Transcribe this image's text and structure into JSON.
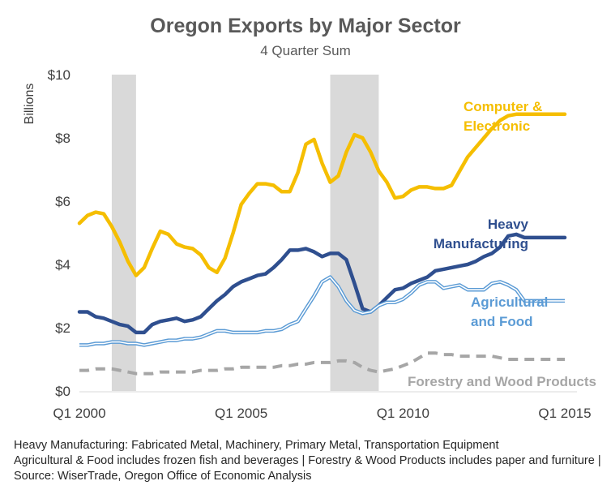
{
  "chart_data": {
    "type": "line",
    "title": "Oregon Exports by Major Sector",
    "subtitle": "4 Quarter Sum",
    "ylabel": "Billions",
    "xlabel": "",
    "ylim": [
      0,
      10
    ],
    "yticks": [
      "$0",
      "$2",
      "$4",
      "$6",
      "$8",
      "$10"
    ],
    "xticks": [
      "Q1 2000",
      "Q1 2005",
      "Q1 2010",
      "Q1 2015"
    ],
    "grid": false,
    "x": [
      2000.0,
      2000.25,
      2000.5,
      2000.75,
      2001.0,
      2001.25,
      2001.5,
      2001.75,
      2002.0,
      2002.25,
      2002.5,
      2002.75,
      2003.0,
      2003.25,
      2003.5,
      2003.75,
      2004.0,
      2004.25,
      2004.5,
      2004.75,
      2005.0,
      2005.25,
      2005.5,
      2005.75,
      2006.0,
      2006.25,
      2006.5,
      2006.75,
      2007.0,
      2007.25,
      2007.5,
      2007.75,
      2008.0,
      2008.25,
      2008.5,
      2008.75,
      2009.0,
      2009.25,
      2009.5,
      2009.75,
      2010.0,
      2010.25,
      2010.5,
      2010.75,
      2011.0,
      2011.25,
      2011.5,
      2011.75,
      2012.0,
      2012.25,
      2012.5,
      2012.75,
      2013.0,
      2013.25,
      2013.5,
      2013.75,
      2014.0,
      2014.25,
      2014.5,
      2014.75,
      2015.0
    ],
    "series": [
      {
        "name": "Computer & Electronic",
        "color": "#f5be00",
        "dash": "solid",
        "values": [
          5.3,
          5.55,
          5.65,
          5.6,
          5.2,
          4.7,
          4.1,
          3.65,
          3.9,
          4.5,
          5.05,
          4.95,
          4.65,
          4.55,
          4.5,
          4.3,
          3.9,
          3.75,
          4.2,
          5.0,
          5.9,
          6.25,
          6.55,
          6.55,
          6.5,
          6.3,
          6.3,
          6.9,
          7.8,
          7.95,
          7.2,
          6.6,
          6.8,
          7.55,
          8.1,
          8.0,
          7.55,
          6.95,
          6.6,
          6.1,
          6.15,
          6.35,
          6.45,
          6.45,
          6.4,
          6.4,
          6.5,
          6.95,
          7.4,
          7.7,
          8.0,
          8.3,
          8.55,
          8.7,
          8.75,
          8.75,
          8.75,
          8.75,
          8.75,
          8.75,
          8.75
        ]
      },
      {
        "name": "Heavy Manufacturing",
        "color": "#2f4f8f",
        "dash": "solid",
        "values": [
          2.5,
          2.5,
          2.35,
          2.3,
          2.2,
          2.1,
          2.05,
          1.85,
          1.85,
          2.1,
          2.2,
          2.25,
          2.3,
          2.2,
          2.25,
          2.35,
          2.6,
          2.85,
          3.05,
          3.3,
          3.45,
          3.55,
          3.65,
          3.7,
          3.9,
          4.15,
          4.45,
          4.45,
          4.5,
          4.4,
          4.25,
          4.35,
          4.35,
          4.15,
          3.4,
          2.6,
          2.5,
          2.7,
          2.95,
          3.2,
          3.25,
          3.4,
          3.5,
          3.6,
          3.8,
          3.85,
          3.9,
          3.95,
          4.0,
          4.1,
          4.25,
          4.35,
          4.55,
          4.9,
          4.95,
          4.85,
          4.85,
          4.85,
          4.85,
          4.85,
          4.85
        ]
      },
      {
        "name": "Agricultural and Food",
        "color": "#5b9bd5",
        "dash": "double",
        "values": [
          1.45,
          1.45,
          1.5,
          1.5,
          1.55,
          1.55,
          1.5,
          1.5,
          1.45,
          1.5,
          1.55,
          1.6,
          1.6,
          1.65,
          1.65,
          1.7,
          1.8,
          1.9,
          1.9,
          1.85,
          1.85,
          1.85,
          1.85,
          1.9,
          1.9,
          1.95,
          2.1,
          2.2,
          2.6,
          3.0,
          3.45,
          3.6,
          3.3,
          2.85,
          2.55,
          2.45,
          2.5,
          2.7,
          2.8,
          2.8,
          2.9,
          3.1,
          3.35,
          3.45,
          3.45,
          3.25,
          3.3,
          3.35,
          3.2,
          3.2,
          3.2,
          3.4,
          3.45,
          3.35,
          3.2,
          2.85,
          2.85,
          2.85,
          2.85,
          2.85,
          2.85
        ]
      },
      {
        "name": "Forestry and Wood Products",
        "color": "#a6a6a6",
        "dash": "dashed",
        "values": [
          0.65,
          0.65,
          0.7,
          0.7,
          0.7,
          0.65,
          0.6,
          0.55,
          0.55,
          0.55,
          0.6,
          0.6,
          0.6,
          0.6,
          0.6,
          0.65,
          0.65,
          0.65,
          0.7,
          0.7,
          0.75,
          0.75,
          0.75,
          0.75,
          0.75,
          0.8,
          0.8,
          0.85,
          0.85,
          0.9,
          0.9,
          0.9,
          0.95,
          0.95,
          0.9,
          0.75,
          0.65,
          0.6,
          0.65,
          0.7,
          0.8,
          0.9,
          1.05,
          1.2,
          1.2,
          1.15,
          1.15,
          1.1,
          1.1,
          1.1,
          1.1,
          1.1,
          1.05,
          1.0,
          1.0,
          1.0,
          1.0,
          1.0,
          1.0,
          1.0,
          1.0
        ]
      }
    ],
    "labels": {
      "computer": [
        "Computer &",
        "Electronic"
      ],
      "heavy": [
        "Heavy",
        "Manufacturing"
      ],
      "agri": [
        "Agricultural",
        "and Food"
      ],
      "forestry": [
        "Forestry and Wood Products"
      ]
    },
    "recession_shading": [
      [
        2001.0,
        2001.75
      ],
      [
        2007.75,
        2009.25
      ]
    ],
    "shading_color": "#d9d9d9"
  },
  "footnote": [
    "Heavy Manufacturing: Fabricated Metal, Machinery, Primary Metal, Transportation Equipment",
    "Agricultural & Food includes frozen fish and beverages |  Forestry & Wood Products includes paper and furniture  |  Source: WiserTrade, Oregon Office of Economic Analysis"
  ]
}
